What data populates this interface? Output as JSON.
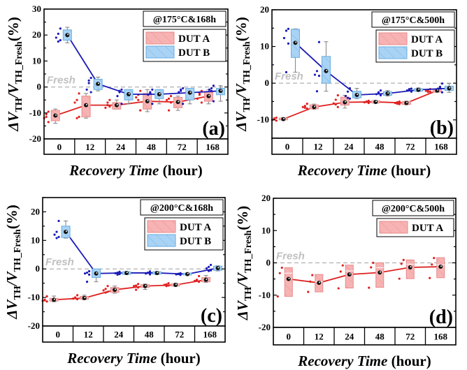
{
  "figure": {
    "xlabel_italic": "Recovery Time",
    "xlabel_unit": " (hour)",
    "ylabel_prefix": "ΔV",
    "ylabel_sub1": "TH",
    "ylabel_mid": "/V",
    "ylabel_sub2": "TH_Fresh",
    "ylabel_suffix": "(%)",
    "fresh_label": "Fresh",
    "colors": {
      "dut_a_line": "#e02020",
      "dut_a_fill": "#f7b3b3",
      "dut_a_edge": "#e88a8a",
      "dut_b_line": "#1a1ab8",
      "dut_b_fill": "#a9d3f5",
      "dut_b_edge": "#6aaee0",
      "whisker": "#808080",
      "fresh_line": "#b0b0b0"
    }
  },
  "chart_data": [
    {
      "type": "box",
      "panel": "(a)",
      "condition": "@175°C&168h",
      "categories": [
        "0",
        "12",
        "24",
        "48",
        "72",
        "168"
      ],
      "ylim": [
        -20,
        30
      ],
      "yticks": [
        -20,
        -10,
        0,
        10,
        20,
        30
      ],
      "legend": [
        "DUT A",
        "DUT B"
      ],
      "series": [
        {
          "name": "DUT A",
          "means": [
            -11,
            -7,
            -7,
            -5.5,
            -5.8,
            -3.5
          ],
          "q1": [
            -13,
            -11.5,
            -8.5,
            -8.5,
            -8,
            -5.5
          ],
          "q3": [
            -9,
            -3.5,
            -6,
            -2.5,
            -4,
            -2
          ],
          "wlo": [
            -14,
            -12,
            -8.5,
            -9.5,
            -9,
            -6.5
          ],
          "whi": [
            -8.5,
            -2.5,
            -5,
            -1,
            -3.5,
            -1
          ],
          "points": [
            [
              -9.5,
              -11.5,
              -12,
              -13.5,
              -10.5
            ],
            [
              -2.5,
              -5,
              -6,
              -11.5,
              -12
            ],
            [
              -5,
              -7,
              -8,
              -7.5,
              -6
            ],
            [
              -1.5,
              -3,
              -4,
              -9,
              -5
            ],
            [
              -3.5,
              -4.5,
              -5,
              -6,
              -9
            ],
            [
              -1.5,
              -2.5,
              -4.5,
              -6,
              -3
            ]
          ]
        },
        {
          "name": "DUT B",
          "means": [
            20,
            1.2,
            -2.8,
            -2.8,
            -2.2,
            -1.5
          ],
          "q1": [
            18,
            -1,
            -5,
            -4.5,
            -5,
            -3
          ],
          "q3": [
            22,
            3,
            -1,
            -1,
            -0.5,
            -0.5
          ],
          "wlo": [
            17,
            -1.5,
            -6.5,
            -6.5,
            -6.5,
            -5.5
          ],
          "whi": [
            23,
            3.8,
            -1,
            -1,
            -0.5,
            0.5
          ],
          "points": [
            [
              22.5,
              20.5,
              19,
              18,
              17.5
            ],
            [
              3.5,
              2.5,
              -1,
              -2,
              1.5
            ],
            [
              -1,
              -2,
              -3.5,
              -6.5,
              -1.5
            ],
            [
              -1,
              -2.5,
              -3,
              -6.5,
              -2
            ],
            [
              -0.5,
              -1.5,
              -2,
              -6.5,
              -1
            ],
            [
              0.5,
              -0.5,
              -1,
              -5.5,
              -1.5
            ]
          ]
        }
      ]
    },
    {
      "type": "box",
      "panel": "(b)",
      "condition": "@175°C&500h",
      "categories": [
        "0",
        "12",
        "24",
        "48",
        "72",
        "168"
      ],
      "ylim": [
        -15,
        20
      ],
      "yticks": [
        -10,
        0,
        10,
        20
      ],
      "legend": [
        "DUT A",
        "DUT B"
      ],
      "series": [
        {
          "name": "DUT A",
          "means": [
            -9.8,
            -6.5,
            -5.2,
            -5.1,
            -5.4,
            -2
          ],
          "q1": [
            -10,
            -7,
            -6,
            -5.4,
            -5.8,
            -2.4
          ],
          "q3": [
            -9.5,
            -5.9,
            -3.8,
            -4.8,
            -5,
            -1.7
          ],
          "wlo": [
            -10.1,
            -7.1,
            -6.8,
            -5.5,
            -5.9,
            -2.5
          ],
          "whi": [
            -9.4,
            -5.7,
            -3.3,
            -4.7,
            -4.9,
            -1.6
          ],
          "points": [
            [
              -9.4,
              -9.8,
              -10,
              -10.2,
              -9.6
            ],
            [
              -5.6,
              -6.2,
              -6.5,
              -6.9,
              -6.7
            ],
            [
              -3.3,
              -4.5,
              -5.5,
              -6.5,
              -5.8
            ],
            [
              -4.8,
              -5,
              -5.2,
              -5.4,
              -5.1
            ],
            [
              -5,
              -5.2,
              -5.4,
              -5.7,
              -5.6
            ],
            [
              -1.6,
              -1.9,
              -2.1,
              -2.3,
              -2.4
            ]
          ]
        },
        {
          "name": "DUT B",
          "means": [
            11,
            3.3,
            -3.2,
            -2.8,
            -1.8,
            -1.4
          ],
          "q1": [
            7,
            0,
            -4,
            -3.3,
            -2.2,
            -2
          ],
          "q3": [
            14.7,
            7.3,
            -2.2,
            -2.3,
            -1.5,
            -0.8
          ],
          "wlo": [
            3,
            -2.2,
            -4.2,
            -3.5,
            -2.3,
            -2.5
          ],
          "whi": [
            14.8,
            11.3,
            -1.4,
            -2,
            -1.3,
            -0.1
          ],
          "points": [
            [
              14.8,
              14.3,
              12.3,
              10.8,
              3
            ],
            [
              11.2,
              3.3,
              2.3,
              2,
              -2.2
            ],
            [
              -1.4,
              -2.3,
              -3.5,
              -4.2,
              -4
            ],
            [
              -2,
              -2.5,
              -3,
              -3.3,
              -2.8
            ],
            [
              -1.5,
              -1.8,
              -2,
              -2.3,
              -1.6
            ],
            [
              -0.1,
              -1.2,
              -1.5,
              -2.5,
              -1
            ]
          ]
        }
      ]
    },
    {
      "type": "box",
      "panel": "(c)",
      "condition": "@200°C&168h",
      "categories": [
        "0",
        "12",
        "24",
        "48",
        "72",
        "168"
      ],
      "ylim": [
        -20,
        25
      ],
      "yticks": [
        -20,
        -10,
        0,
        10,
        20
      ],
      "legend": [
        "DUT A",
        "DUT B"
      ],
      "series": [
        {
          "name": "DUT A",
          "means": [
            -10.8,
            -10.2,
            -7.3,
            -6,
            -5.6,
            -3.8
          ],
          "q1": [
            -11.3,
            -10.6,
            -8.2,
            -6.5,
            -6,
            -4.5
          ],
          "q3": [
            -10.3,
            -9.6,
            -6.5,
            -5.5,
            -5.2,
            -3
          ],
          "wlo": [
            -11.5,
            -10.8,
            -8.5,
            -7.2,
            -6.1,
            -4.7
          ],
          "whi": [
            -9.5,
            -9.2,
            -6,
            -5.3,
            -5,
            -2.3
          ],
          "points": [
            [
              -9.6,
              -10.8,
              -11.2,
              -11.4,
              -11
            ],
            [
              -9.2,
              -10,
              -10.4,
              -10.6,
              -10.2
            ],
            [
              -6,
              -7,
              -7.5,
              -8,
              -8.3
            ],
            [
              -5.3,
              -5.8,
              -6,
              -6.5,
              -7.3
            ],
            [
              -5,
              -5.4,
              -5.6,
              -5.8,
              -6
            ],
            [
              -2.5,
              -3.8,
              -4.2,
              -4.5,
              -4
            ]
          ]
        },
        {
          "name": "DUT B",
          "means": [
            13,
            -1.6,
            -1.4,
            -1.4,
            -1.8,
            0.3
          ],
          "q1": [
            11,
            -3,
            -1.9,
            -1.8,
            -2.1,
            -0.5
          ],
          "q3": [
            15,
            0,
            -1,
            -1,
            -1.5,
            1
          ],
          "wlo": [
            10.8,
            -4.5,
            -2,
            -2,
            -2.2,
            -0.7
          ],
          "whi": [
            16.8,
            -0.5,
            -0.9,
            -0.9,
            -1.4,
            1.1
          ],
          "points": [
            [
              16.8,
              13,
              12,
              11.2,
              10.8
            ],
            [
              -0.8,
              -1.3,
              -1.6,
              -2,
              -4.5
            ],
            [
              -1,
              -1.3,
              -1.5,
              -1.8,
              -2
            ],
            [
              -0.9,
              -1.3,
              -1.6,
              -1.9,
              -1.4
            ],
            [
              -1.5,
              -1.7,
              -1.9,
              -2.1,
              -1.8
            ],
            [
              1.4,
              0.7,
              0.2,
              -0.5,
              -0.7
            ]
          ]
        }
      ]
    },
    {
      "type": "box",
      "panel": "(d)",
      "condition": "@200°C&500h",
      "categories": [
        "0",
        "12",
        "24",
        "48",
        "72",
        "168"
      ],
      "ylim": [
        -20,
        20
      ],
      "yticks": [
        -20,
        -10,
        0,
        10,
        20
      ],
      "legend": [
        "DUT A"
      ],
      "series": [
        {
          "name": "DUT A",
          "means": [
            -5,
            -6.2,
            -3.6,
            -3,
            -1.4,
            -1.2
          ],
          "q1": [
            -10.4,
            -9,
            -7.8,
            -7.6,
            -4.9,
            -4.6
          ],
          "q3": [
            -1.5,
            -3.6,
            -0.7,
            0,
            0.9,
            1.6
          ],
          "median": [
            -3.2,
            -5.8,
            -2.5,
            -1.5,
            -0.4,
            -0.6
          ],
          "points": [
            [
              -1.5,
              -3.2,
              -10.4
            ],
            [
              -3.8,
              -5.8,
              -9
            ],
            [
              -0.8,
              -2.7,
              -7.9
            ],
            [
              0,
              -1.4,
              -7.7
            ],
            [
              0.9,
              -0.3,
              -4.9
            ],
            [
              1.5,
              -0.5,
              -4.7
            ]
          ]
        }
      ]
    }
  ]
}
